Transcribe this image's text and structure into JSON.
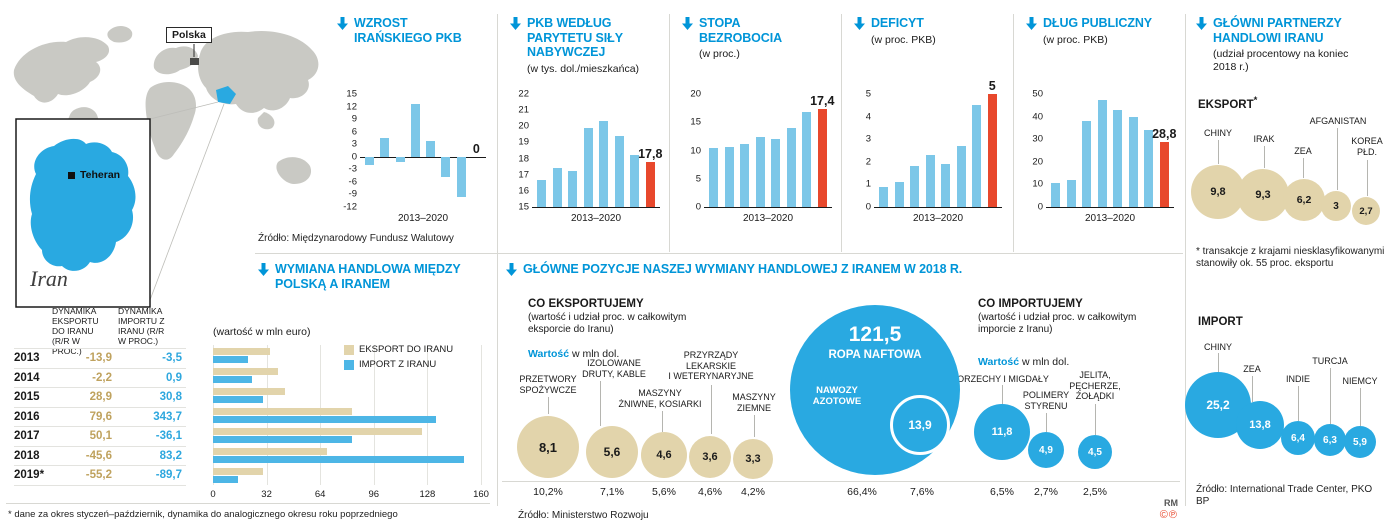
{
  "map": {
    "poland_label": "Polska",
    "city_label": "Teheran",
    "country_label": "Iran"
  },
  "trade_items_header": "GŁÓWNE POZYCJE NASZEJ WYMIANY HANDLOWEJ Z IRANEM W 2018 R.",
  "credits": {
    "initials": "RM",
    "rights": "©℗"
  },
  "chart_data": [
    {
      "id": "wzrost-pkb",
      "type": "bar",
      "title": "WZROST IRAŃSKIEGO PKB",
      "categories": [
        "2013",
        "2014",
        "2015",
        "2016",
        "2017",
        "2018",
        "2019",
        "2020"
      ],
      "values": [
        -1.9,
        4.6,
        -1.3,
        12.5,
        3.7,
        -4.8,
        -9.5,
        0
      ],
      "ylim": [
        -12,
        15
      ],
      "yticks": [
        15,
        12,
        9,
        6,
        3,
        0,
        -3,
        -6,
        -9,
        -12
      ],
      "xlabel": "2013–2020",
      "highlight_last": true,
      "last_label": "0",
      "source": "Źródło: Międzynarodowy Fundusz Walutowy"
    },
    {
      "id": "pkb-ppp",
      "type": "bar",
      "title": "PKB WEDŁUG PARYTETU SIŁY NABYWCZEJ",
      "subtitle": "(w tys. dol./mieszkańca)",
      "categories": [
        "2013",
        "2014",
        "2015",
        "2016",
        "2017",
        "2018",
        "2019",
        "2020"
      ],
      "values": [
        16.7,
        17.4,
        17.2,
        19.9,
        20.3,
        19.4,
        18.2,
        17.8
      ],
      "ylim": [
        15,
        22
      ],
      "yticks": [
        22,
        21,
        20,
        19,
        18,
        17,
        16,
        15
      ],
      "xlabel": "2013–2020",
      "highlight_last": true,
      "last_label": "17,8"
    },
    {
      "id": "stopa-bezrobocia",
      "type": "bar",
      "title": "STOPA BEZROBOCIA",
      "subtitle": "(w proc.)",
      "categories": [
        "2013",
        "2014",
        "2015",
        "2016",
        "2017",
        "2018",
        "2019",
        "2020"
      ],
      "values": [
        10.4,
        10.6,
        11.1,
        12.4,
        12.1,
        13.9,
        16.8,
        17.4
      ],
      "ylim": [
        0,
        20
      ],
      "yticks": [
        20,
        15,
        10,
        5,
        0
      ],
      "xlabel": "2013–2020",
      "highlight_last": true,
      "last_label": "17,4"
    },
    {
      "id": "deficyt",
      "type": "bar",
      "title": "DEFICYT",
      "subtitle": "(w proc. PKB)",
      "categories": [
        "2013",
        "2014",
        "2015",
        "2016",
        "2017",
        "2018",
        "2019",
        "2020"
      ],
      "values": [
        0.9,
        1.1,
        1.8,
        2.3,
        1.9,
        2.7,
        4.5,
        5
      ],
      "ylim": [
        0,
        5
      ],
      "yticks": [
        5,
        4,
        3,
        2,
        1,
        0
      ],
      "xlabel": "2013–2020",
      "highlight_last": true,
      "last_label": "5"
    },
    {
      "id": "dlug-publiczny",
      "type": "bar",
      "title": "DŁUG PUBLICZNY",
      "subtitle": "(w proc. PKB)",
      "categories": [
        "2013",
        "2014",
        "2015",
        "2016",
        "2017",
        "2018",
        "2019",
        "2020"
      ],
      "values": [
        10.8,
        12,
        38,
        47.5,
        43,
        40,
        34,
        28.8
      ],
      "ylim": [
        0,
        50
      ],
      "yticks": [
        50,
        40,
        30,
        20,
        10,
        0
      ],
      "xlabel": "2013–2020",
      "highlight_last": true,
      "last_label": "28,8"
    },
    {
      "id": "wymiana-handlowa",
      "type": "bar-horizontal",
      "title": "WYMIANA HANDLOWA MIĘDZY POLSKĄ A IRANEM",
      "unit": "(wartość w mln euro)",
      "years": [
        "2013",
        "2014",
        "2015",
        "2016",
        "2017",
        "2018",
        "2019*"
      ],
      "series": [
        {
          "name": "EKSPORT DO IRANU",
          "values": [
            34,
            39,
            43,
            83,
            125,
            68,
            30
          ]
        },
        {
          "name": "IMPORT Z IRANU",
          "values": [
            21,
            23,
            30,
            133,
            83,
            150,
            15
          ]
        }
      ],
      "xlim": [
        0,
        160
      ],
      "xticks": [
        0,
        32,
        64,
        96,
        128,
        160
      ],
      "table": {
        "col1": "DYNAMIKA EKSPORTU DO IRANU (r/r w proc.)",
        "col2": "DYNAMIKA IMPORTU Z IRANU (r/r w proc.)",
        "rows": [
          {
            "year": "2013",
            "eksport": "-13,9",
            "import": "-3,5"
          },
          {
            "year": "2014",
            "eksport": "-2,2",
            "import": "0,9"
          },
          {
            "year": "2015",
            "eksport": "28,9",
            "import": "30,8"
          },
          {
            "year": "2016",
            "eksport": "79,6",
            "import": "343,7"
          },
          {
            "year": "2017",
            "eksport": "50,1",
            "import": "-36,1"
          },
          {
            "year": "2018",
            "eksport": "-45,6",
            "import": "83,2"
          },
          {
            "year": "2019*",
            "eksport": "-55,2",
            "import": "-89,7"
          }
        ]
      },
      "footnote": "* dane za okres styczeń–październik, dynamika do analogicznego okresu roku poprzedniego"
    },
    {
      "id": "co-eksportujemy",
      "type": "bubble",
      "title": "CO EKSPORTUJEMY",
      "subtitle": "(wartość i udział proc. w całkowitym eksporcie do Iranu)",
      "value_word": "Wartość",
      "value_unit": "w mln dol.",
      "items": [
        {
          "label": "PRZETWORY\nSPOŻYWCZE",
          "value": "8,1",
          "share": "10,2%"
        },
        {
          "label": "IZOLOWANE\nDRUTY, KABLE",
          "value": "5,6",
          "share": "7,1%"
        },
        {
          "label": "MASZYNY\nŻNIWNE, KOSIARKI",
          "value": "4,6",
          "share": "5,6%"
        },
        {
          "label": "PRZYRZĄDY\nLEKARSKIE\nI WETERYNARYJNE",
          "value": "3,6",
          "share": "4,6%"
        },
        {
          "label": "MASZYNY\nZIEMNE",
          "value": "3,3",
          "share": "4,2%"
        }
      ],
      "source": "Źródło: Ministerstwo Rozwoju"
    },
    {
      "id": "co-importujemy",
      "type": "bubble",
      "title": "CO IMPORTUJEMY",
      "subtitle": "(wartość i udział proc. w całkowitym imporcie z Iranu)",
      "value_word": "Wartość",
      "value_unit": "w mln dol.",
      "items": [
        {
          "label": "ROPA NAFTOWA",
          "value": "121,5",
          "share": "66,4%"
        },
        {
          "label": "NAWOZY\nAZOTOWE",
          "value": "13,9",
          "share": "7,6%"
        },
        {
          "label": "ORZECHY I MIGDAŁY",
          "value": "11,8",
          "share": "6,5%"
        },
        {
          "label": "POLIMERY\nSTYRENU",
          "value": "4,9",
          "share": "2,7%"
        },
        {
          "label": "JELITA,\nPĘCHERZE,\nŻOŁĄDKI",
          "value": "4,5",
          "share": "2,5%"
        }
      ]
    },
    {
      "id": "partnerzy-iranu",
      "type": "bubble",
      "title": "GŁÓWNI PARTNERZY HANDLOWI IRANU",
      "subtitle": "(udział procentowy na koniec 2018 r.)",
      "eksport_label": "EKSPORT",
      "eksport_mark": "*",
      "e_items": [
        {
          "label": "CHINY",
          "value": "9,8"
        },
        {
          "label": "IRAK",
          "value": "9,3"
        },
        {
          "label": "ZEA",
          "value": "6,2"
        },
        {
          "label": "AFGANISTAN",
          "value": "3"
        },
        {
          "label": "KOREA\nPŁD.",
          "value": "2,7"
        }
      ],
      "import_label": "IMPORT",
      "i_items": [
        {
          "label": "CHINY",
          "value": "25,2"
        },
        {
          "label": "ZEA",
          "value": "13,8"
        },
        {
          "label": "INDIE",
          "value": "6,4"
        },
        {
          "label": "TURCJA",
          "value": "6,3"
        },
        {
          "label": "NIEMCY",
          "value": "5,9"
        }
      ],
      "footnote": "* transakcje z krajami niesklasyfikowanymi stanowiły ok. 55 proc. eksportu",
      "source": "Źródło: International Trade Center, PKO BP"
    }
  ]
}
